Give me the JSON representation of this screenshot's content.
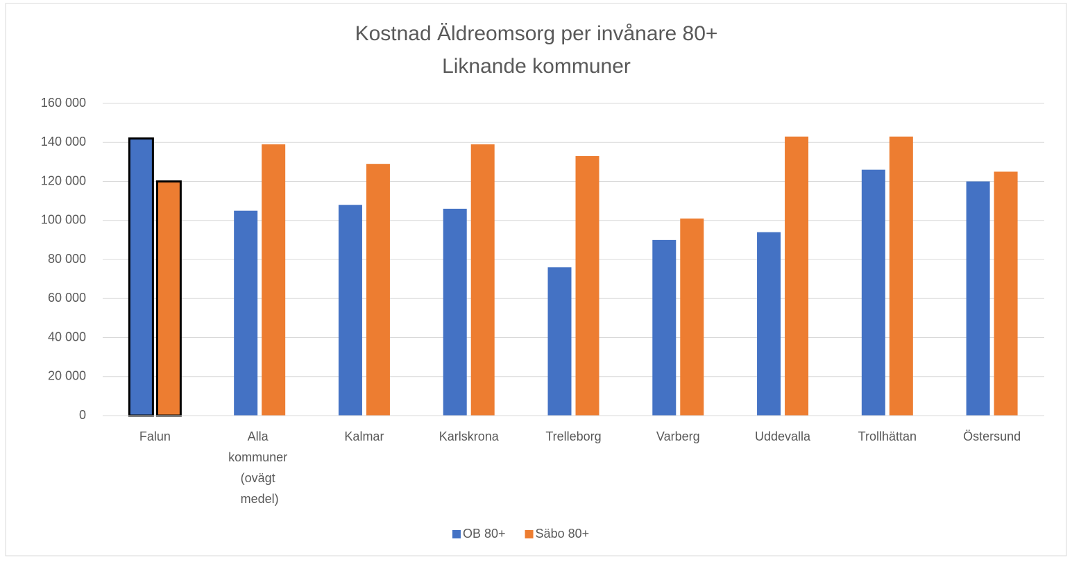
{
  "chart_data": {
    "type": "bar",
    "title": [
      "Kostnad Äldreomsorg per invånare 80+",
      "Liknande kommuner"
    ],
    "categories": [
      "Falun",
      "Alla kommuner (ovägt medel)",
      "Kalmar",
      "Karlskrona",
      "Trelleborg",
      "Varberg",
      "Uddevalla",
      "Trollhättan",
      "Östersund"
    ],
    "series": [
      {
        "name": "OB 80+",
        "color": "#4472c4",
        "values": [
          142000,
          105000,
          108000,
          106000,
          76000,
          90000,
          94000,
          126000,
          120000
        ]
      },
      {
        "name": "Säbo 80+",
        "color": "#ed7d31",
        "values": [
          120000,
          139000,
          129000,
          139000,
          133000,
          101000,
          143000,
          143000,
          125000
        ]
      }
    ],
    "outline": {
      "color": "#000000",
      "categories": [
        0
      ]
    },
    "ylim": [
      0,
      160000
    ],
    "yticks": [
      0,
      {
        "value": 20000,
        "label": "20 000"
      },
      {
        "value": 40000,
        "label": "40 000"
      },
      {
        "value": 60000,
        "label": "60 000"
      },
      {
        "value": 80000,
        "label": "80 000"
      },
      {
        "value": 100000,
        "label": "100 000"
      },
      {
        "value": 120000,
        "label": "120 000"
      },
      {
        "value": 140000,
        "label": "140 000"
      },
      {
        "value": 160000,
        "label": "160 000"
      }
    ],
    "grid": true,
    "legend": "bottom"
  }
}
